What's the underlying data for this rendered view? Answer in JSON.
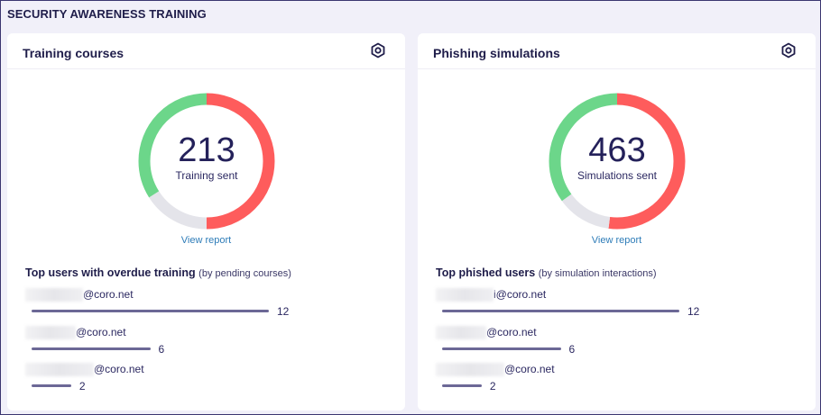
{
  "page_title": "SECURITY AWARENESS TRAINING",
  "colors": {
    "red": "#fe5c5c",
    "green": "#6cd68a",
    "grey": "#e4e4ea",
    "bar": "#6c6896",
    "link": "#2e7cb8"
  },
  "cards": [
    {
      "title": "Training courses",
      "settings_icon": "gear-icon",
      "total": "213",
      "total_label": "Training sent",
      "donut_segments": [
        {
          "color": "red",
          "fraction": 0.5
        },
        {
          "color": "grey",
          "fraction": 0.16
        },
        {
          "color": "green",
          "fraction": 0.34
        }
      ],
      "view_report": "View report",
      "list_title": "Top users with overdue training",
      "list_subtitle": "(by pending courses)",
      "max": 12,
      "users": [
        {
          "email_suffix": "@coro.net",
          "value": 12,
          "value_label": "12"
        },
        {
          "email_suffix": "@coro.net",
          "value": 6,
          "value_label": "6"
        },
        {
          "email_suffix": "@coro.net",
          "value": 2,
          "value_label": "2"
        }
      ]
    },
    {
      "title": "Phishing simulations",
      "settings_icon": "gear-icon",
      "total": "463",
      "total_label": "Simulations sent",
      "donut_segments": [
        {
          "color": "red",
          "fraction": 0.52
        },
        {
          "color": "grey",
          "fraction": 0.13
        },
        {
          "color": "green",
          "fraction": 0.35
        }
      ],
      "view_report": "View report",
      "list_title": "Top phished users",
      "list_subtitle": "(by simulation interactions)",
      "max": 12,
      "users": [
        {
          "email_suffix": "i@coro.net",
          "value": 12,
          "value_label": "12"
        },
        {
          "email_suffix": "@coro.net",
          "value": 6,
          "value_label": "6"
        },
        {
          "email_suffix": "@coro.net",
          "value": 2,
          "value_label": "2"
        }
      ]
    }
  ]
}
